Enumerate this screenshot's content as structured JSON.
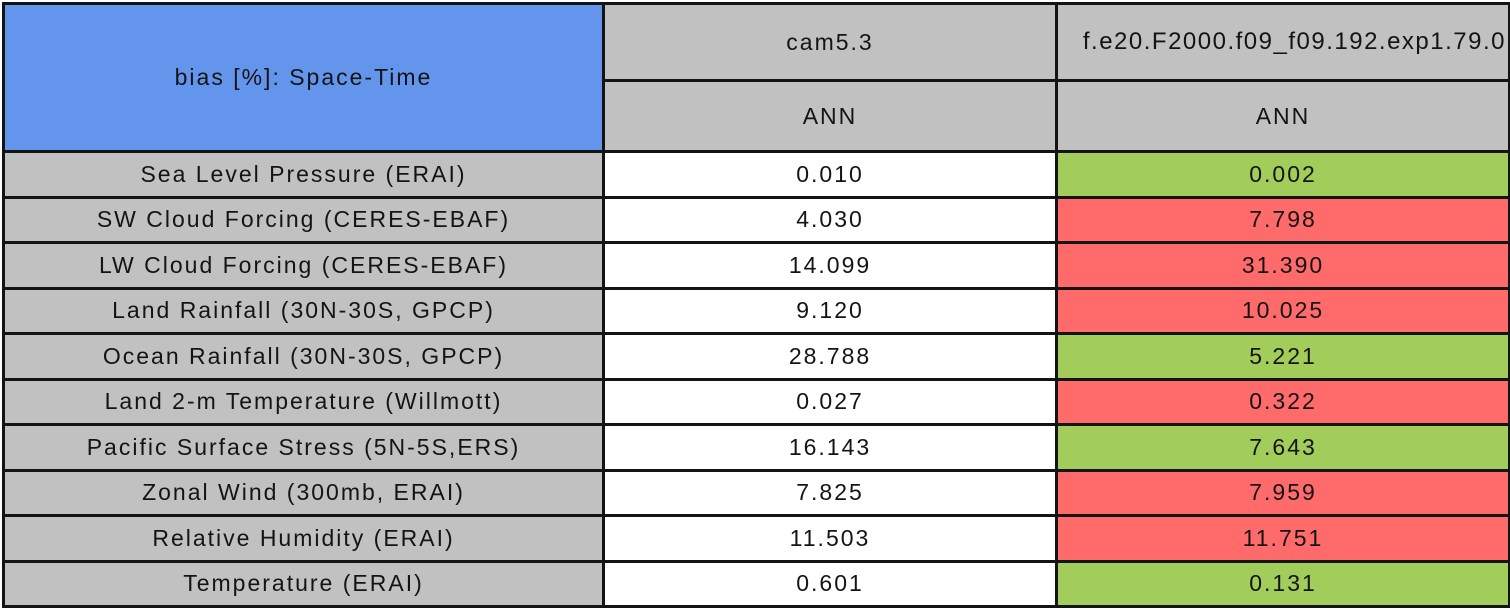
{
  "colors": {
    "title_bg": "#6495ED",
    "header_bg": "#C1C1C1",
    "baseline_bg": "#FFFFFF",
    "better": "#A2CD5A",
    "worse": "#FF6A6A",
    "border": "#141414",
    "text": "#141414"
  },
  "table": {
    "title": "bias [%]: Space-Time",
    "columns": [
      {
        "model": "cam5.3",
        "season": "ANN"
      },
      {
        "model": "f.e20.F2000.f09_f09.192.exp1.79.0",
        "season": "ANN"
      }
    ],
    "rows": [
      {
        "label": "Sea Level Pressure (ERAI)",
        "cam_value": "0.010",
        "exp_value": "0.002",
        "exp_status": "better"
      },
      {
        "label": "SW Cloud Forcing (CERES-EBAF)",
        "cam_value": "4.030",
        "exp_value": "7.798",
        "exp_status": "worse"
      },
      {
        "label": "LW Cloud Forcing (CERES-EBAF)",
        "cam_value": "14.099",
        "exp_value": "31.390",
        "exp_status": "worse"
      },
      {
        "label": "Land Rainfall (30N-30S, GPCP)",
        "cam_value": "9.120",
        "exp_value": "10.025",
        "exp_status": "worse"
      },
      {
        "label": "Ocean Rainfall (30N-30S, GPCP)",
        "cam_value": "28.788",
        "exp_value": "5.221",
        "exp_status": "better"
      },
      {
        "label": "Land 2-m Temperature (Willmott)",
        "cam_value": "0.027",
        "exp_value": "0.322",
        "exp_status": "worse"
      },
      {
        "label": "Pacific Surface Stress (5N-5S,ERS)",
        "cam_value": "16.143",
        "exp_value": "7.643",
        "exp_status": "better"
      },
      {
        "label": "Zonal Wind (300mb, ERAI)",
        "cam_value": "7.825",
        "exp_value": "7.959",
        "exp_status": "worse"
      },
      {
        "label": "Relative Humidity (ERAI)",
        "cam_value": "11.503",
        "exp_value": "11.751",
        "exp_status": "worse"
      },
      {
        "label": "Temperature (ERAI)",
        "cam_value": "0.601",
        "exp_value": "0.131",
        "exp_status": "better"
      }
    ]
  },
  "chart_data": {
    "type": "table",
    "title": "bias [%]: Space-Time",
    "column_groups": [
      "cam5.3",
      "f.e20.F2000.f09_f09.192.exp1.79.0"
    ],
    "column_subheaders": [
      "ANN",
      "ANN"
    ],
    "row_labels": [
      "Sea Level Pressure (ERAI)",
      "SW Cloud Forcing (CERES-EBAF)",
      "LW Cloud Forcing (CERES-EBAF)",
      "Land Rainfall (30N-30S, GPCP)",
      "Ocean Rainfall (30N-30S, GPCP)",
      "Land 2-m Temperature (Willmott)",
      "Pacific Surface Stress (5N-5S,ERS)",
      "Zonal Wind (300mb, ERAI)",
      "Relative Humidity (ERAI)",
      "Temperature (ERAI)"
    ],
    "values": [
      [
        0.01,
        0.002
      ],
      [
        4.03,
        7.798
      ],
      [
        14.099,
        31.39
      ],
      [
        9.12,
        10.025
      ],
      [
        28.788,
        5.221
      ],
      [
        0.027,
        0.322
      ],
      [
        16.143,
        7.643
      ],
      [
        7.825,
        7.959
      ],
      [
        11.503,
        11.751
      ],
      [
        0.601,
        0.131
      ]
    ],
    "exp_column_cell_colors": [
      "green",
      "red",
      "red",
      "red",
      "green",
      "red",
      "green",
      "red",
      "red",
      "green"
    ],
    "cam_column_cell_color": "white",
    "layout": {
      "grid": true,
      "title_position": "top-left-cell",
      "title_bg": "#6495ED"
    }
  }
}
